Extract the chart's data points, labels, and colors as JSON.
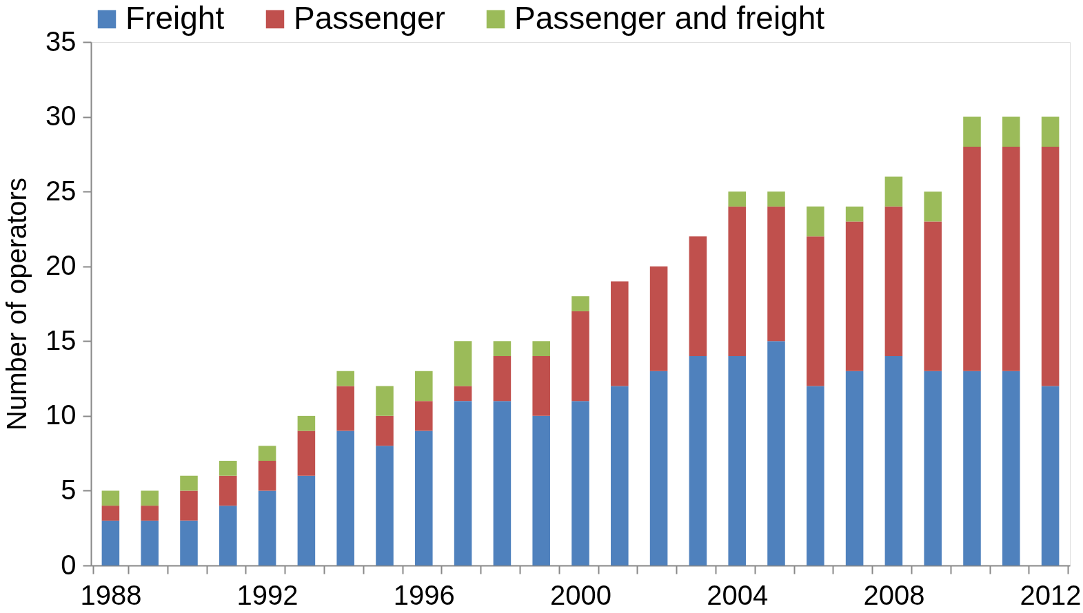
{
  "chart_data": {
    "type": "bar",
    "stacked": true,
    "ylabel": "Number of operators",
    "categories": [
      "1988",
      null,
      null,
      null,
      "1992",
      null,
      null,
      null,
      "1996",
      null,
      null,
      null,
      "2000",
      null,
      null,
      null,
      "2004",
      null,
      null,
      null,
      "2008",
      null,
      null,
      null,
      "2012"
    ],
    "series": [
      {
        "name": "Freight",
        "color": "#4f81bd",
        "values": [
          3,
          3,
          3,
          4,
          5,
          6,
          9,
          8,
          9,
          11,
          11,
          10,
          11,
          12,
          13,
          14,
          14,
          15,
          12,
          13,
          14,
          13,
          13,
          13,
          12
        ]
      },
      {
        "name": "Passenger",
        "color": "#c0504d",
        "values": [
          1,
          1,
          2,
          2,
          2,
          3,
          3,
          2,
          2,
          1,
          3,
          4,
          6,
          7,
          7,
          8,
          10,
          9,
          10,
          10,
          10,
          10,
          15,
          15,
          16
        ]
      },
      {
        "name": "Passenger and freight",
        "color": "#9bbb59",
        "values": [
          1,
          1,
          1,
          1,
          1,
          1,
          1,
          2,
          2,
          3,
          1,
          1,
          1,
          0,
          0,
          0,
          1,
          1,
          2,
          1,
          2,
          2,
          2,
          2,
          2
        ]
      }
    ],
    "ylim": [
      0,
      35
    ],
    "yticks": [
      0,
      5,
      10,
      15,
      20,
      25,
      30,
      35
    ],
    "grid": false,
    "legend": "top"
  }
}
